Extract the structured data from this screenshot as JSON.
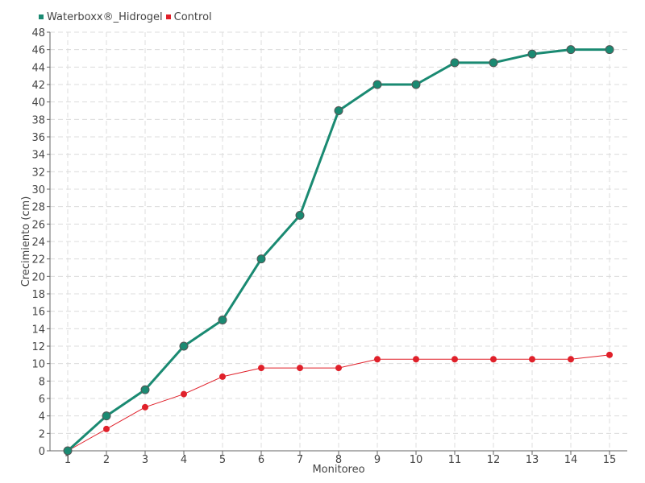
{
  "chart_data": {
    "type": "line",
    "title": "",
    "xlabel": "Monitoreo",
    "ylabel": "Crecimiento (cm)",
    "categories": [
      "1",
      "2",
      "3",
      "4",
      "5",
      "6",
      "7",
      "8",
      "9",
      "10",
      "11",
      "12",
      "13",
      "14",
      "15"
    ],
    "ylim": [
      0,
      48
    ],
    "y_tick_step": 2,
    "grid": true,
    "legend_position": "top-left",
    "series": [
      {
        "name": "Waterboxx®_Hidrogel",
        "color": "#1a8a72",
        "values": [
          0,
          4,
          7,
          12,
          15,
          22,
          27,
          39,
          42,
          42,
          44.5,
          44.5,
          45.5,
          46,
          46
        ]
      },
      {
        "name": "Control",
        "color": "#e0202a",
        "values": [
          0,
          2.5,
          5,
          6.5,
          8.5,
          9.5,
          9.5,
          9.5,
          10.5,
          10.5,
          10.5,
          10.5,
          10.5,
          10.5,
          11
        ]
      }
    ]
  }
}
